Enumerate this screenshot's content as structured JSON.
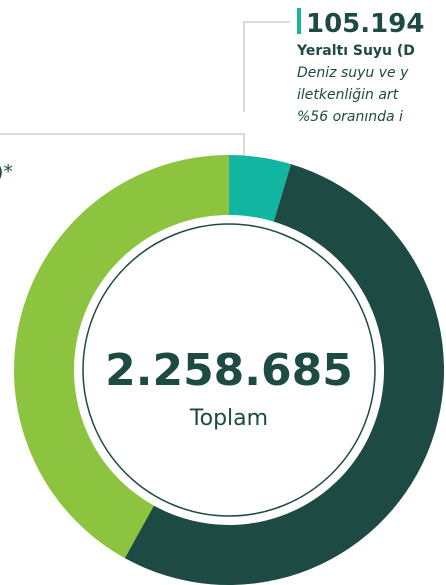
{
  "chart_data": {
    "type": "donut",
    "categories": [
      "Yeraltı Suyu (D",
      null,
      null
    ],
    "values": [
      105194,
      1206000,
      947491
    ],
    "value_labels": [
      "105.194",
      null,
      null
    ],
    "colors": [
      "#12b5a0",
      "#1d4a43",
      "#8cc43f"
    ],
    "annotation_lines": [
      "Deniz suyu ve y",
      "iletkenliğin art",
      "%56 oranında i"
    ],
    "left_annotation": ")*",
    "center_text": "2.258.685",
    "center_caption": "Toplam"
  }
}
